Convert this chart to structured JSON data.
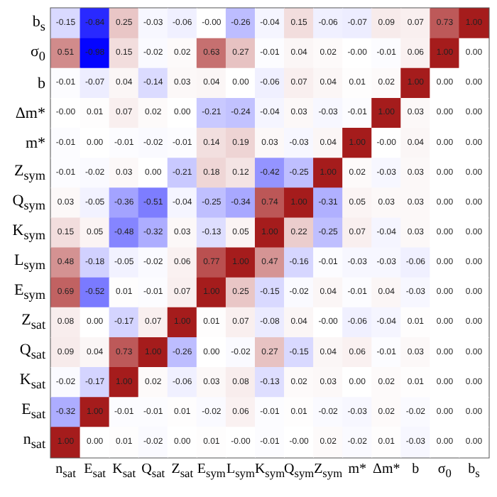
{
  "chart_data": {
    "type": "heatmap",
    "categories": [
      "n$_{sat}$",
      "E$_{sat}$",
      "K$_{sat}$",
      "Q$_{sat}$",
      "Z$_{sat}$",
      "E$_{sym}$",
      "L$_{sym}$",
      "K$_{sym}$",
      "Q$_{sym}$",
      "Z$_{sym}$",
      "m*",
      "Δm*",
      "b",
      "σ$_{0}$",
      "b$_{s}$"
    ],
    "y_categories": [
      "b$_{s}$",
      "σ$_{0}$",
      "b",
      "Δm*",
      "m*",
      "Z$_{sym}$",
      "Q$_{sym}$",
      "K$_{sym}$",
      "L$_{sym}$",
      "E$_{sym}$",
      "Z$_{sat}$",
      "Q$_{sat}$",
      "K$_{sat}$",
      "E$_{sat}$",
      "n$_{sat}$"
    ],
    "cells": [
      [
        -0.15,
        -0.84,
        0.25,
        -0.03,
        -0.06,
        0,
        -0.26,
        -0.04,
        0.15,
        -0.06,
        -0.07,
        0.09,
        0.07,
        0.73,
        1.0
      ],
      [
        0.51,
        -0.98,
        0.15,
        -0.02,
        0.02,
        0.63,
        0.27,
        -0.01,
        0.04,
        0.02,
        0,
        -0.01,
        0.06,
        1.0,
        0
      ],
      [
        -0.01,
        -0.07,
        0.04,
        -0.14,
        0.03,
        0.04,
        0,
        -0.06,
        0.07,
        0.04,
        0.01,
        0.02,
        1.0,
        0,
        0
      ],
      [
        0,
        0.01,
        0.07,
        0.02,
        0,
        -0.21,
        -0.24,
        -0.04,
        0.03,
        -0.03,
        -0.01,
        1.0,
        0.03,
        0,
        0
      ],
      [
        -0.01,
        0,
        -0.01,
        -0.02,
        -0.01,
        0.14,
        0.19,
        0.03,
        -0.03,
        0.04,
        1.0,
        0,
        0.04,
        0,
        0
      ],
      [
        -0.01,
        -0.02,
        0.03,
        0,
        -0.21,
        0.18,
        0.12,
        -0.42,
        -0.25,
        1.0,
        0.02,
        -0.03,
        0.03,
        0,
        0
      ],
      [
        0.03,
        -0.05,
        -0.36,
        -0.51,
        -0.04,
        -0.25,
        -0.34,
        0.74,
        1.0,
        -0.31,
        0.05,
        0.03,
        0.03,
        0,
        0
      ],
      [
        0.15,
        0.05,
        -0.48,
        -0.32,
        0.03,
        -0.13,
        0.05,
        1.0,
        0.22,
        -0.25,
        0.07,
        -0.04,
        0.03,
        0,
        0
      ],
      [
        0.48,
        -0.18,
        -0.05,
        -0.02,
        0.06,
        0.77,
        1.0,
        0.47,
        -0.16,
        -0.01,
        -0.03,
        -0.03,
        -0.06,
        0,
        0
      ],
      [
        0.69,
        -0.52,
        0.01,
        -0.01,
        0.07,
        1.0,
        0.25,
        -0.15,
        -0.02,
        0.04,
        -0.01,
        0.04,
        -0.03,
        0,
        0
      ],
      [
        0.08,
        0,
        -0.17,
        0.07,
        1.0,
        0.01,
        0.07,
        -0.08,
        0.04,
        0,
        -0.06,
        -0.04,
        0.01,
        0,
        0
      ],
      [
        0.09,
        0.04,
        0.73,
        1.0,
        -0.26,
        0,
        -0.02,
        0.27,
        -0.15,
        0.04,
        0.06,
        -0.01,
        0.03,
        0,
        0
      ],
      [
        -0.02,
        -0.17,
        1.0,
        0.02,
        -0.06,
        0.03,
        0.08,
        -0.13,
        0.02,
        0.03,
        0,
        0.02,
        0.01,
        0,
        0
      ],
      [
        -0.32,
        1.0,
        -0.01,
        -0.01,
        0.01,
        -0.02,
        0.06,
        -0.01,
        0.01,
        -0.02,
        -0.03,
        0.02,
        -0.02,
        0,
        0
      ],
      [
        1.0,
        0,
        0.01,
        -0.02,
        0,
        0.01,
        0,
        -0.01,
        0,
        0.02,
        -0.02,
        0.01,
        -0.03,
        0,
        0
      ]
    ],
    "cell_labels": [
      [
        "-0.15",
        "-0.84",
        "0.25",
        "-0.03",
        "-0.06",
        "-0.00",
        "-0.26",
        "-0.04",
        "0.15",
        "-0.06",
        "-0.07",
        "0.09",
        "0.07",
        "0.73",
        "1.00"
      ],
      [
        "0.51",
        "-0.98",
        "0.15",
        "-0.02",
        "0.02",
        "0.63",
        "0.27",
        "-0.01",
        "0.04",
        "0.02",
        "-0.00",
        "-0.01",
        "0.06",
        "1.00",
        "0.00"
      ],
      [
        "-0.01",
        "-0.07",
        "0.04",
        "-0.14",
        "0.03",
        "0.04",
        "0.00",
        "-0.06",
        "0.07",
        "0.04",
        "0.01",
        "0.02",
        "1.00",
        "0.00",
        "0.00"
      ],
      [
        "-0.00",
        "0.01",
        "0.07",
        "0.02",
        "0.00",
        "-0.21",
        "-0.24",
        "-0.04",
        "0.03",
        "-0.03",
        "-0.01",
        "1.00",
        "0.03",
        "0.00",
        "0.00"
      ],
      [
        "-0.01",
        "0.00",
        "-0.01",
        "-0.02",
        "-0.01",
        "0.14",
        "0.19",
        "0.03",
        "-0.03",
        "0.04",
        "1.00",
        "-0.00",
        "0.04",
        "0.00",
        "0.00"
      ],
      [
        "-0.01",
        "-0.02",
        "0.03",
        "0.00",
        "-0.21",
        "0.18",
        "0.12",
        "-0.42",
        "-0.25",
        "1.00",
        "0.02",
        "-0.03",
        "0.03",
        "0.00",
        "0.00"
      ],
      [
        "0.03",
        "-0.05",
        "-0.36",
        "-0.51",
        "-0.04",
        "-0.25",
        "-0.34",
        "0.74",
        "1.00",
        "-0.31",
        "0.05",
        "0.03",
        "0.03",
        "0.00",
        "0.00"
      ],
      [
        "0.15",
        "0.05",
        "-0.48",
        "-0.32",
        "0.03",
        "-0.13",
        "0.05",
        "1.00",
        "0.22",
        "-0.25",
        "0.07",
        "-0.04",
        "0.03",
        "0.00",
        "0.00"
      ],
      [
        "0.48",
        "-0.18",
        "-0.05",
        "-0.02",
        "0.06",
        "0.77",
        "1.00",
        "0.47",
        "-0.16",
        "-0.01",
        "-0.03",
        "-0.03",
        "-0.06",
        "0.00",
        "0.00"
      ],
      [
        "0.69",
        "-0.52",
        "0.01",
        "-0.01",
        "0.07",
        "1.00",
        "0.25",
        "-0.15",
        "-0.02",
        "0.04",
        "-0.01",
        "0.04",
        "-0.03",
        "0.00",
        "0.00"
      ],
      [
        "0.08",
        "0.00",
        "-0.17",
        "0.07",
        "1.00",
        "0.01",
        "0.07",
        "-0.08",
        "0.04",
        "-0.00",
        "-0.06",
        "-0.04",
        "0.01",
        "0.00",
        "0.00"
      ],
      [
        "0.09",
        "0.04",
        "0.73",
        "1.00",
        "-0.26",
        "0.00",
        "-0.02",
        "0.27",
        "-0.15",
        "0.04",
        "0.06",
        "-0.01",
        "0.03",
        "0.00",
        "0.00"
      ],
      [
        "-0.02",
        "-0.17",
        "1.00",
        "0.02",
        "-0.06",
        "0.03",
        "0.08",
        "-0.13",
        "0.02",
        "0.03",
        "0.00",
        "0.02",
        "0.01",
        "0.00",
        "0.00"
      ],
      [
        "-0.32",
        "1.00",
        "-0.01",
        "-0.01",
        "0.01",
        "-0.02",
        "0.06",
        "-0.01",
        "0.01",
        "-0.02",
        "-0.03",
        "0.02",
        "-0.02",
        "0.00",
        "0.00"
      ],
      [
        "1.00",
        "0.00",
        "0.01",
        "-0.02",
        "0.00",
        "0.01",
        "-0.00",
        "-0.01",
        "-0.00",
        "0.02",
        "-0.02",
        "0.01",
        "-0.03",
        "0.00",
        "0.00"
      ]
    ]
  }
}
